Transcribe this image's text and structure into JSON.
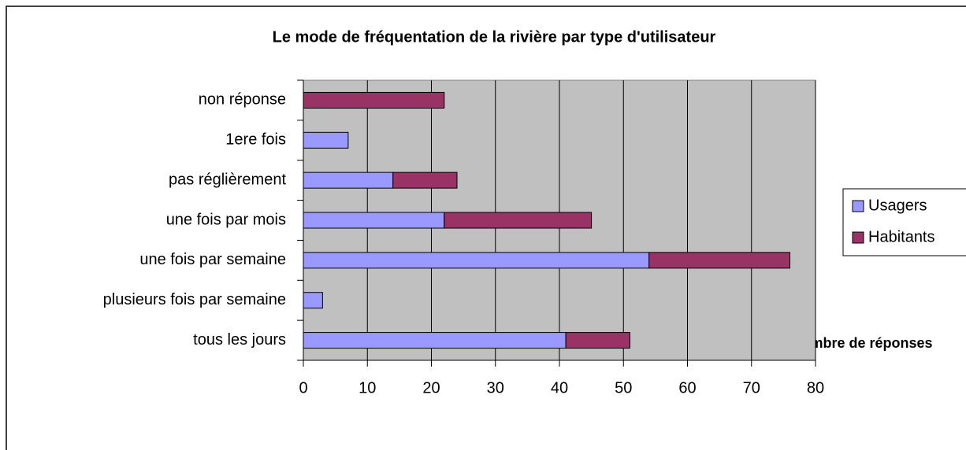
{
  "chart_data": {
    "type": "bar",
    "orientation": "horizontal",
    "stacked": true,
    "title": "Le mode de fréquentation de la rivière par type d'utilisateur",
    "xlabel": "nombre de réponses",
    "categories": [
      "non réponse",
      "1ere fois",
      "pas réglièrement",
      "une fois par mois",
      "une fois par semaine",
      "plusieurs fois par semaine",
      "tous les jours"
    ],
    "series": [
      {
        "name": "Usagers",
        "color": "#9999ff",
        "values": [
          0,
          7,
          14,
          22,
          54,
          3,
          41
        ]
      },
      {
        "name": "Habitants",
        "color": "#993366",
        "values": [
          22,
          0,
          10,
          23,
          22,
          0,
          10
        ]
      }
    ],
    "xlim": [
      0,
      80
    ],
    "xticks": [
      0,
      10,
      20,
      30,
      40,
      50,
      60,
      70,
      80
    ],
    "grid": true,
    "legend": "right",
    "plot_background": "#c0c0c0"
  }
}
